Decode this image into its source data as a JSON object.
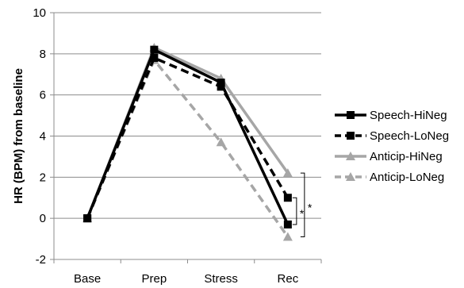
{
  "chart_data": {
    "type": "line",
    "title": "",
    "xlabel": "",
    "ylabel": "HR (BPM) from baseline",
    "categories": [
      "Base",
      "Prep",
      "Stress",
      "Rec"
    ],
    "ylim": [
      -2,
      10
    ],
    "yticks": [
      -2,
      0,
      2,
      4,
      6,
      8,
      10
    ],
    "grid": "horizontal",
    "legend": "right",
    "series": [
      {
        "name": "Speech-HiNeg",
        "values": [
          0,
          8.2,
          6.6,
          -0.3
        ],
        "color": "#000000",
        "dash": "solid",
        "marker": "square"
      },
      {
        "name": "Speech-LoNeg",
        "values": [
          0,
          7.8,
          6.4,
          1.0
        ],
        "color": "#000000",
        "dash": "dashed",
        "marker": "square"
      },
      {
        "name": "Anticip-HiNeg",
        "values": [
          0,
          8.3,
          6.8,
          2.2
        ],
        "color": "#a6a6a6",
        "dash": "solid",
        "marker": "triangle"
      },
      {
        "name": "Anticip-LoNeg",
        "values": [
          0,
          7.7,
          3.7,
          -0.9
        ],
        "color": "#a6a6a6",
        "dash": "dashed",
        "marker": "triangle"
      }
    ],
    "annotations": [
      {
        "text": "*",
        "between": [
          "Speech-HiNeg",
          "Speech-LoNeg"
        ],
        "at": "Rec"
      },
      {
        "text": "*",
        "between": [
          "Anticip-HiNeg",
          "Anticip-LoNeg"
        ],
        "at": "Rec"
      }
    ]
  }
}
